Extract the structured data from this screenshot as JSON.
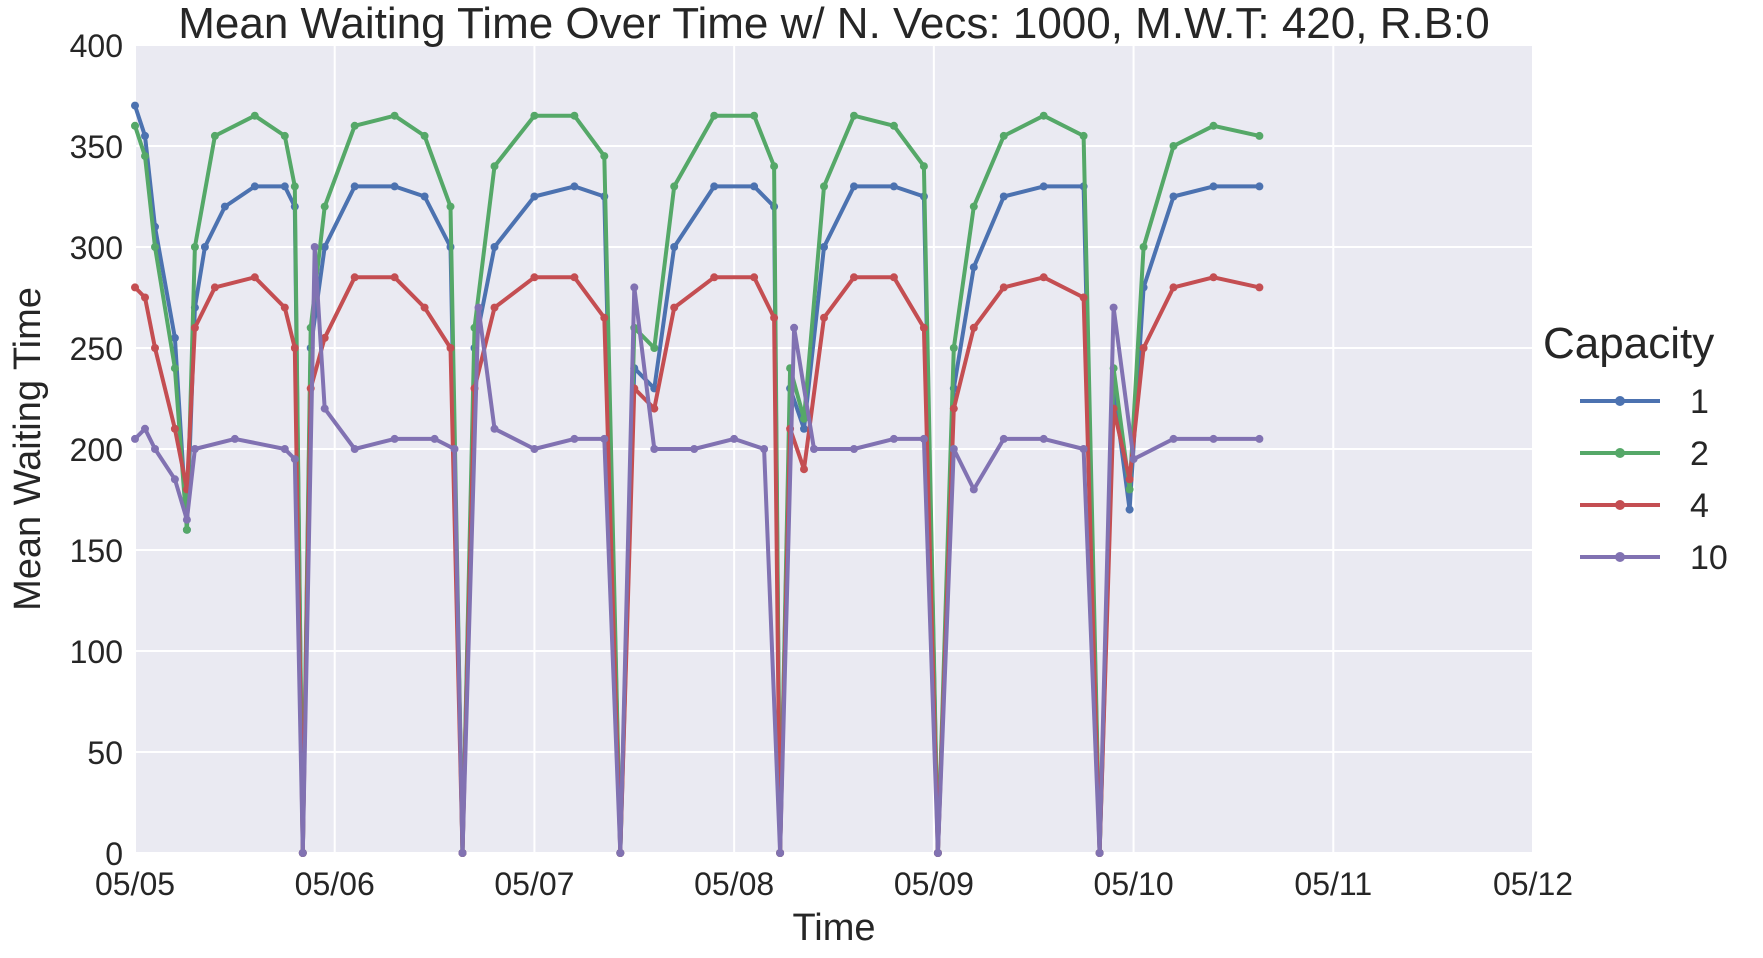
{
  "chart_data": {
    "type": "line",
    "title": "Mean Waiting Time Over Time w/ N. Vecs: 1000, M.W.T: 420, R.B:0",
    "xlabel": "Time",
    "ylabel": "Mean Waiting Time",
    "xlim": [
      "05/05",
      "05/12"
    ],
    "ylim": [
      0,
      400
    ],
    "x_ticks": [
      "05/05",
      "05/06",
      "05/07",
      "05/08",
      "05/09",
      "05/10",
      "05/11",
      "05/12"
    ],
    "y_ticks": [
      0,
      50,
      100,
      150,
      200,
      250,
      300,
      350,
      400
    ],
    "grid": true,
    "legend": {
      "title": "Capacity",
      "placement": "right"
    },
    "x_unit": "days since 05/05",
    "series": [
      {
        "name": "1",
        "color": "#4c72b0",
        "points": [
          [
            0.0,
            370
          ],
          [
            0.05,
            355
          ],
          [
            0.1,
            310
          ],
          [
            0.2,
            255
          ],
          [
            0.26,
            160
          ],
          [
            0.3,
            270
          ],
          [
            0.35,
            300
          ],
          [
            0.45,
            320
          ],
          [
            0.6,
            330
          ],
          [
            0.75,
            330
          ],
          [
            0.8,
            320
          ],
          [
            0.84,
            0
          ],
          [
            0.88,
            250
          ],
          [
            0.95,
            300
          ],
          [
            1.1,
            330
          ],
          [
            1.3,
            330
          ],
          [
            1.45,
            325
          ],
          [
            1.58,
            300
          ],
          [
            1.64,
            0
          ],
          [
            1.7,
            250
          ],
          [
            1.8,
            300
          ],
          [
            2.0,
            325
          ],
          [
            2.2,
            330
          ],
          [
            2.35,
            325
          ],
          [
            2.43,
            0
          ],
          [
            2.5,
            240
          ],
          [
            2.6,
            230
          ],
          [
            2.7,
            300
          ],
          [
            2.9,
            330
          ],
          [
            3.1,
            330
          ],
          [
            3.2,
            320
          ],
          [
            3.23,
            0
          ],
          [
            3.28,
            230
          ],
          [
            3.35,
            210
          ],
          [
            3.45,
            300
          ],
          [
            3.6,
            330
          ],
          [
            3.8,
            330
          ],
          [
            3.95,
            325
          ],
          [
            4.02,
            0
          ],
          [
            4.1,
            230
          ],
          [
            4.2,
            290
          ],
          [
            4.35,
            325
          ],
          [
            4.55,
            330
          ],
          [
            4.75,
            330
          ],
          [
            4.83,
            0
          ],
          [
            4.9,
            230
          ],
          [
            4.98,
            170
          ],
          [
            5.05,
            280
          ],
          [
            5.2,
            325
          ],
          [
            5.4,
            330
          ],
          [
            5.63,
            330
          ]
        ]
      },
      {
        "name": "2",
        "color": "#55a868",
        "points": [
          [
            0.0,
            360
          ],
          [
            0.05,
            345
          ],
          [
            0.1,
            300
          ],
          [
            0.2,
            240
          ],
          [
            0.26,
            160
          ],
          [
            0.3,
            300
          ],
          [
            0.4,
            355
          ],
          [
            0.6,
            365
          ],
          [
            0.75,
            355
          ],
          [
            0.8,
            330
          ],
          [
            0.84,
            0
          ],
          [
            0.88,
            260
          ],
          [
            0.95,
            320
          ],
          [
            1.1,
            360
          ],
          [
            1.3,
            365
          ],
          [
            1.45,
            355
          ],
          [
            1.58,
            320
          ],
          [
            1.64,
            0
          ],
          [
            1.7,
            260
          ],
          [
            1.8,
            340
          ],
          [
            2.0,
            365
          ],
          [
            2.2,
            365
          ],
          [
            2.35,
            345
          ],
          [
            2.43,
            0
          ],
          [
            2.5,
            260
          ],
          [
            2.6,
            250
          ],
          [
            2.7,
            330
          ],
          [
            2.9,
            365
          ],
          [
            3.1,
            365
          ],
          [
            3.2,
            340
          ],
          [
            3.23,
            0
          ],
          [
            3.28,
            240
          ],
          [
            3.35,
            215
          ],
          [
            3.45,
            330
          ],
          [
            3.6,
            365
          ],
          [
            3.8,
            360
          ],
          [
            3.95,
            340
          ],
          [
            4.02,
            0
          ],
          [
            4.1,
            250
          ],
          [
            4.2,
            320
          ],
          [
            4.35,
            355
          ],
          [
            4.55,
            365
          ],
          [
            4.75,
            355
          ],
          [
            4.83,
            0
          ],
          [
            4.9,
            240
          ],
          [
            4.98,
            180
          ],
          [
            5.05,
            300
          ],
          [
            5.2,
            350
          ],
          [
            5.4,
            360
          ],
          [
            5.63,
            355
          ]
        ]
      },
      {
        "name": "4",
        "color": "#c44e52",
        "points": [
          [
            0.0,
            280
          ],
          [
            0.05,
            275
          ],
          [
            0.1,
            250
          ],
          [
            0.2,
            210
          ],
          [
            0.26,
            180
          ],
          [
            0.3,
            260
          ],
          [
            0.4,
            280
          ],
          [
            0.6,
            285
          ],
          [
            0.75,
            270
          ],
          [
            0.8,
            250
          ],
          [
            0.84,
            0
          ],
          [
            0.88,
            230
          ],
          [
            0.95,
            255
          ],
          [
            1.1,
            285
          ],
          [
            1.3,
            285
          ],
          [
            1.45,
            270
          ],
          [
            1.58,
            250
          ],
          [
            1.64,
            0
          ],
          [
            1.7,
            230
          ],
          [
            1.8,
            270
          ],
          [
            2.0,
            285
          ],
          [
            2.2,
            285
          ],
          [
            2.35,
            265
          ],
          [
            2.43,
            0
          ],
          [
            2.5,
            230
          ],
          [
            2.6,
            220
          ],
          [
            2.7,
            270
          ],
          [
            2.9,
            285
          ],
          [
            3.1,
            285
          ],
          [
            3.2,
            265
          ],
          [
            3.23,
            0
          ],
          [
            3.28,
            210
          ],
          [
            3.35,
            190
          ],
          [
            3.45,
            265
          ],
          [
            3.6,
            285
          ],
          [
            3.8,
            285
          ],
          [
            3.95,
            260
          ],
          [
            4.02,
            0
          ],
          [
            4.1,
            220
          ],
          [
            4.2,
            260
          ],
          [
            4.35,
            280
          ],
          [
            4.55,
            285
          ],
          [
            4.75,
            275
          ],
          [
            4.83,
            0
          ],
          [
            4.9,
            220
          ],
          [
            4.98,
            185
          ],
          [
            5.05,
            250
          ],
          [
            5.2,
            280
          ],
          [
            5.4,
            285
          ],
          [
            5.63,
            280
          ]
        ]
      },
      {
        "name": "10",
        "color": "#8172b2",
        "points": [
          [
            0.0,
            205
          ],
          [
            0.05,
            210
          ],
          [
            0.1,
            200
          ],
          [
            0.2,
            185
          ],
          [
            0.26,
            165
          ],
          [
            0.3,
            200
          ],
          [
            0.5,
            205
          ],
          [
            0.75,
            200
          ],
          [
            0.8,
            195
          ],
          [
            0.84,
            0
          ],
          [
            0.9,
            300
          ],
          [
            0.95,
            220
          ],
          [
            1.1,
            200
          ],
          [
            1.3,
            205
          ],
          [
            1.5,
            205
          ],
          [
            1.6,
            200
          ],
          [
            1.64,
            0
          ],
          [
            1.72,
            270
          ],
          [
            1.8,
            210
          ],
          [
            2.0,
            200
          ],
          [
            2.2,
            205
          ],
          [
            2.35,
            205
          ],
          [
            2.43,
            0
          ],
          [
            2.5,
            280
          ],
          [
            2.6,
            200
          ],
          [
            2.8,
            200
          ],
          [
            3.0,
            205
          ],
          [
            3.15,
            200
          ],
          [
            3.23,
            0
          ],
          [
            3.3,
            260
          ],
          [
            3.4,
            200
          ],
          [
            3.6,
            200
          ],
          [
            3.8,
            205
          ],
          [
            3.95,
            205
          ],
          [
            4.02,
            0
          ],
          [
            4.1,
            200
          ],
          [
            4.2,
            180
          ],
          [
            4.35,
            205
          ],
          [
            4.55,
            205
          ],
          [
            4.75,
            200
          ],
          [
            4.83,
            0
          ],
          [
            4.9,
            270
          ],
          [
            5.0,
            195
          ],
          [
            5.2,
            205
          ],
          [
            5.4,
            205
          ],
          [
            5.63,
            205
          ]
        ]
      }
    ]
  }
}
